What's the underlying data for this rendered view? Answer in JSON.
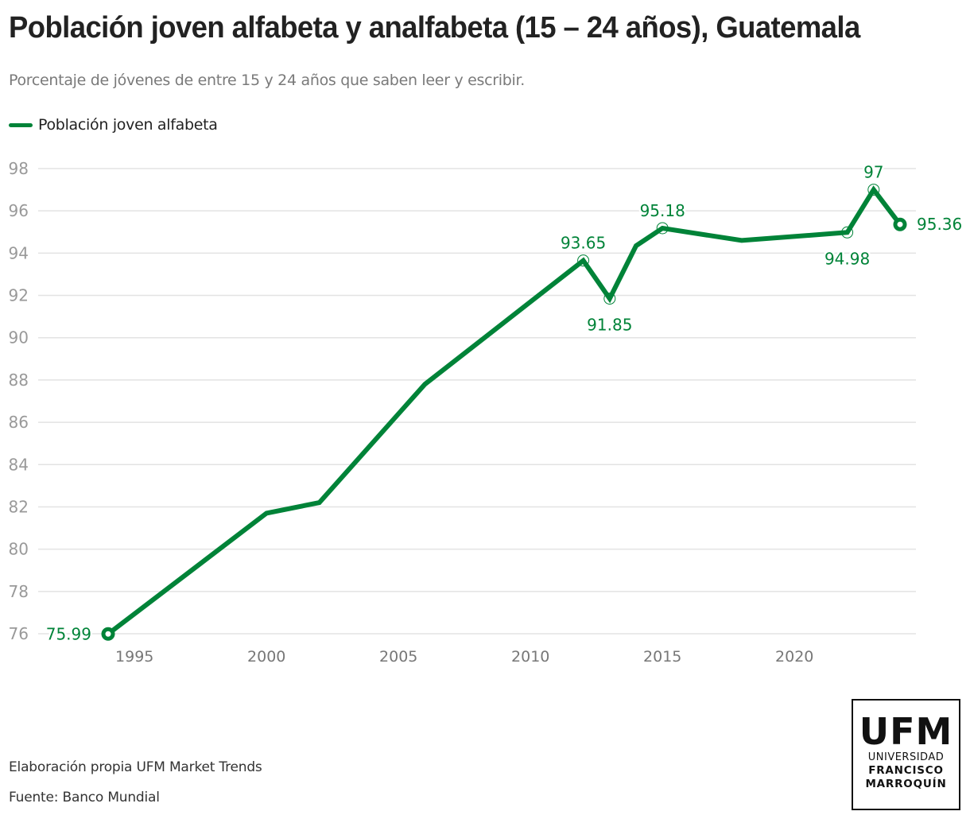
{
  "header": {
    "title": "Población joven alfabeta y analfabeta (15 – 24 años), Guatemala",
    "subtitle": "Porcentaje de jóvenes de entre 15 y 24 años que saben leer y escribir."
  },
  "footer": {
    "credit": "Elaboración propia UFM Market Trends",
    "source": "Fuente: Banco Mundial"
  },
  "logo": {
    "acronym": "UFM",
    "line1": "UNIVERSIDAD",
    "line2": "FRANCISCO",
    "line3": "MARROQUÍN"
  },
  "colors": {
    "series": "#008338",
    "grid": "#e3e3e3",
    "axis_text": "#999999",
    "x_axis_text": "#777777"
  },
  "chart_data": {
    "type": "line",
    "title": "Población joven alfabeta y analfabeta (15 – 24 años), Guatemala",
    "subtitle": "Porcentaje de jóvenes de entre 15 y 24 años que saben leer y escribir.",
    "xlabel": "",
    "ylabel": "",
    "xlim": [
      1994,
      2024
    ],
    "ylim": [
      76,
      98
    ],
    "y_ticks": [
      76,
      78,
      80,
      82,
      84,
      86,
      88,
      90,
      92,
      94,
      96,
      98
    ],
    "x_ticks": [
      1995,
      2000,
      2005,
      2010,
      2015,
      2020
    ],
    "grid": true,
    "legend_position": "top-left",
    "series": [
      {
        "name": "Población joven alfabeta",
        "x": [
          1994,
          2000,
          2002,
          2006,
          2012,
          2013,
          2014,
          2015,
          2018,
          2022,
          2023,
          2024
        ],
        "values": [
          75.99,
          81.7,
          82.2,
          87.8,
          93.65,
          91.85,
          94.35,
          95.18,
          94.6,
          94.98,
          97,
          95.36
        ]
      }
    ],
    "annotations": [
      {
        "x": 1994,
        "y": 75.99,
        "label": "75.99",
        "pos": "left",
        "marker": "end"
      },
      {
        "x": 2012,
        "y": 93.65,
        "label": "93.65",
        "pos": "above",
        "marker": "ring"
      },
      {
        "x": 2013,
        "y": 91.85,
        "label": "91.85",
        "pos": "below",
        "marker": "ring"
      },
      {
        "x": 2015,
        "y": 95.18,
        "label": "95.18",
        "pos": "above",
        "marker": "ring"
      },
      {
        "x": 2022,
        "y": 94.98,
        "label": "94.98",
        "pos": "below",
        "marker": "ring"
      },
      {
        "x": 2023,
        "y": 97,
        "label": "97",
        "pos": "above",
        "marker": "ring"
      },
      {
        "x": 2024,
        "y": 95.36,
        "label": "95.36",
        "pos": "right",
        "marker": "end"
      }
    ]
  }
}
